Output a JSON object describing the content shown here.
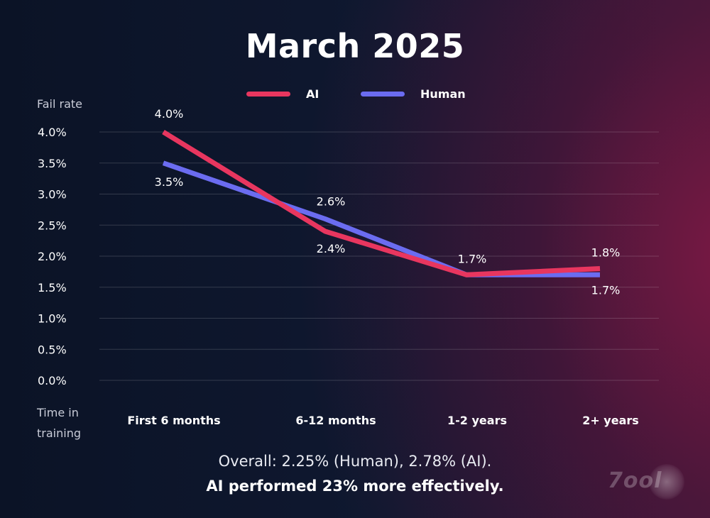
{
  "chart_data": {
    "type": "line",
    "title": "March 2025",
    "ylabel": "Fail rate",
    "xlabel": "Time in training",
    "categories": [
      "First 6 months",
      "6-12 months",
      "1-2 years",
      "2+ years"
    ],
    "ylim": [
      0,
      4.0
    ],
    "yticks": [
      "4.0%",
      "3.5%",
      "3.0%",
      "2.5%",
      "2.0%",
      "1.5%",
      "1.0%",
      "0.5%",
      "0.0%"
    ],
    "ytick_values": [
      4.0,
      3.5,
      3.0,
      2.5,
      2.0,
      1.5,
      1.0,
      0.5,
      0.0
    ],
    "grid": true,
    "legend_position": "top-center",
    "series": [
      {
        "name": "AI",
        "color": "#e8365f",
        "values": [
          4.0,
          2.4,
          1.7,
          1.8
        ],
        "labels": [
          "4.0%",
          "2.4%",
          "1.7%",
          "1.8%"
        ]
      },
      {
        "name": "Human",
        "color": "#6b6cf0",
        "values": [
          3.5,
          2.6,
          1.7,
          1.7
        ],
        "labels": [
          "3.5%",
          "2.6%",
          "",
          "1.7%"
        ]
      }
    ]
  },
  "ui": {
    "title": "March 2025",
    "y_heading": "Fail rate",
    "x_heading_line1": "Time in",
    "x_heading_line2": "training",
    "legend": [
      {
        "label": "AI",
        "color": "#e8365f"
      },
      {
        "label": "Human",
        "color": "#6b6cf0"
      }
    ],
    "footer_line1": "Overall: 2.25% (Human), 2.78% (AI).",
    "footer_line2": "AI performed 23% more effectively.",
    "watermark": "7ool",
    "watermark_icon": "splat-logo-icon"
  }
}
